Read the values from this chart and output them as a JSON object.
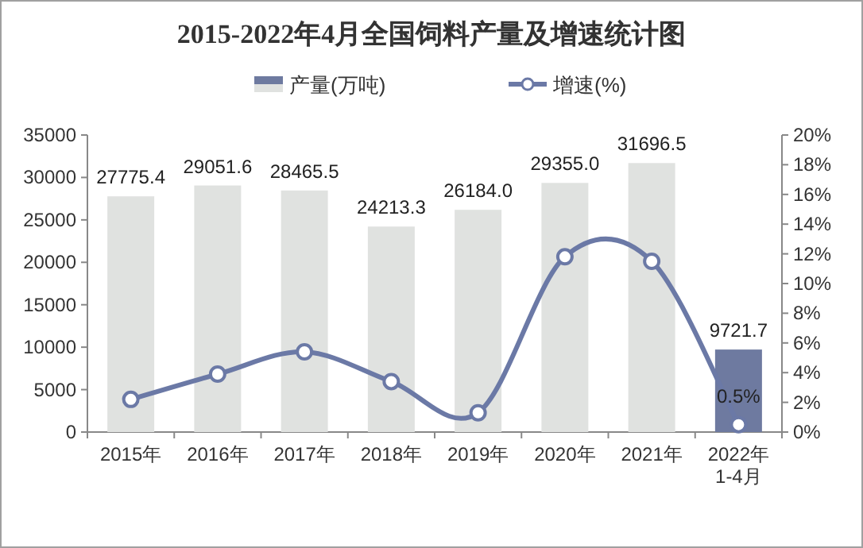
{
  "chart_data": {
    "type": "bar",
    "title": "2015-2022年4月全国饲料产量及增速统计图",
    "categories": [
      "2015年",
      "2016年",
      "2017年",
      "2018年",
      "2019年",
      "2020年",
      "2021年",
      "2022年\n1-4月"
    ],
    "series": [
      {
        "name": "产量(万吨)",
        "color": "#e0e2e0",
        "colors": [
          "#e0e2e0",
          "#e0e2e0",
          "#e0e2e0",
          "#e0e2e0",
          "#e0e2e0",
          "#e0e2e0",
          "#e0e2e0",
          "#6e7aa0"
        ],
        "values": [
          27775.4,
          29051.6,
          28465.5,
          24213.3,
          26184.0,
          29355.0,
          31696.5,
          9721.7
        ],
        "value_labels": [
          "27775.4",
          "29051.6",
          "28465.5",
          "24213.3",
          "26184.0",
          "29355.0",
          "31696.5",
          "9721.7"
        ]
      },
      {
        "name": "增速(%)",
        "type": "line",
        "axis": "y2",
        "color": "#6b79a6",
        "marker": "circle",
        "values": [
          2.2,
          3.9,
          5.4,
          3.4,
          1.3,
          11.8,
          11.5,
          0.5
        ],
        "value_labels": [
          null,
          null,
          null,
          null,
          null,
          null,
          null,
          "0.5%"
        ]
      }
    ],
    "ylim": [
      0,
      35000
    ],
    "yticks": [
      0,
      5000,
      10000,
      15000,
      20000,
      25000,
      30000,
      35000
    ],
    "y2lim": [
      0,
      20
    ],
    "y2ticks": [
      {
        "value": 0,
        "label": "0%"
      },
      {
        "value": 2,
        "label": "2%"
      },
      {
        "value": 4,
        "label": "4%"
      },
      {
        "value": 6,
        "label": "6%"
      },
      {
        "value": 8,
        "label": "8%"
      },
      {
        "value": 10,
        "label": "10%"
      },
      {
        "value": 12,
        "label": "12%"
      },
      {
        "value": 14,
        "label": "14%"
      },
      {
        "value": 16,
        "label": "16%"
      },
      {
        "value": 18,
        "label": "18%"
      },
      {
        "value": 20,
        "label": "20%"
      }
    ],
    "legend": "top",
    "grid": false
  }
}
